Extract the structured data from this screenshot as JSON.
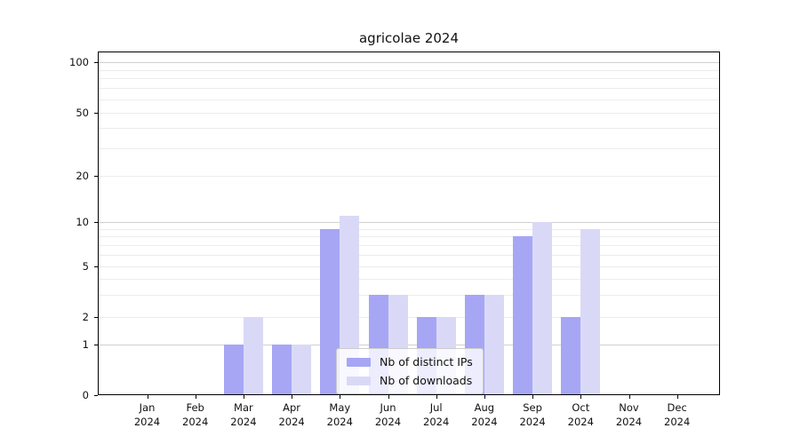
{
  "title": "agricolae 2024",
  "chart_data": {
    "type": "bar",
    "title": "agricolae 2024",
    "year_label": "2024",
    "months": [
      "Jan",
      "Feb",
      "Mar",
      "Apr",
      "May",
      "Jun",
      "Jul",
      "Aug",
      "Sep",
      "Oct",
      "Nov",
      "Dec"
    ],
    "categories": [
      "Jan 2024",
      "Feb 2024",
      "Mar 2024",
      "Apr 2024",
      "May 2024",
      "Jun 2024",
      "Jul 2024",
      "Aug 2024",
      "Sep 2024",
      "Oct 2024",
      "Nov 2024",
      "Dec 2024"
    ],
    "series": [
      {
        "name": "Nb of distinct IPs",
        "color": "#a6a6f5",
        "values": [
          0,
          0,
          1,
          1,
          9,
          3,
          2,
          3,
          8,
          2,
          0,
          0
        ]
      },
      {
        "name": "Nb of downloads",
        "color": "#d9d9f7",
        "values": [
          0,
          0,
          2,
          1,
          11,
          3,
          2,
          3,
          10,
          9,
          0,
          0
        ]
      }
    ],
    "xlabel": "",
    "ylabel": "",
    "ylim": [
      0,
      120
    ],
    "y_axis": {
      "scale": "log-like with 0",
      "tick_values": [
        0,
        1,
        2,
        5,
        10,
        20,
        50,
        100
      ],
      "tick_labels": [
        "0",
        "1",
        "2",
        "5",
        "10",
        "20",
        "50",
        "100"
      ],
      "major_gridlines": [
        1,
        10,
        100
      ],
      "minor_gridlines": [
        2,
        3,
        4,
        5,
        6,
        7,
        8,
        9,
        20,
        30,
        40,
        50,
        60,
        70,
        80,
        90
      ],
      "major_grid_color": "#d0d0d0",
      "minor_grid_color": "#ececec"
    },
    "legend": {
      "position": "inside-bottom-center"
    },
    "grid": "horizontal only",
    "frame_color": "#000000",
    "background_color": "#ffffff"
  }
}
